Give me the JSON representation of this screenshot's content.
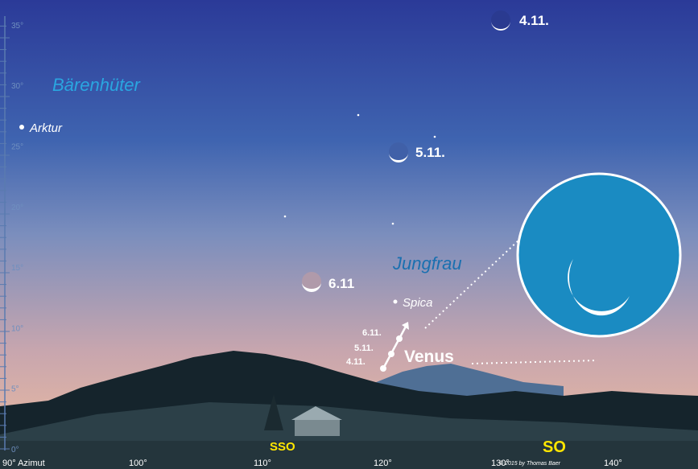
{
  "altitude_labels": [
    "0°",
    "5°",
    "10°",
    "15°",
    "20°",
    "25°",
    "30°",
    "35°"
  ],
  "azimuth_labels": [
    "90° Azimut",
    "100°",
    "110°",
    "120°",
    "130°",
    "140°"
  ],
  "directions": [
    "SSO",
    "SO"
  ],
  "constellations": [
    "Bärenhüter",
    "Jungfrau"
  ],
  "stars": [
    "Arktur",
    "Spica"
  ],
  "moon_dates": [
    "4.11.",
    "5.11.",
    "6.11"
  ],
  "planet": {
    "name": "Venus",
    "dates": [
      "6.11.",
      "5.11.",
      "4.11."
    ]
  },
  "copyright": "© 2015 by Thomas Baer"
}
